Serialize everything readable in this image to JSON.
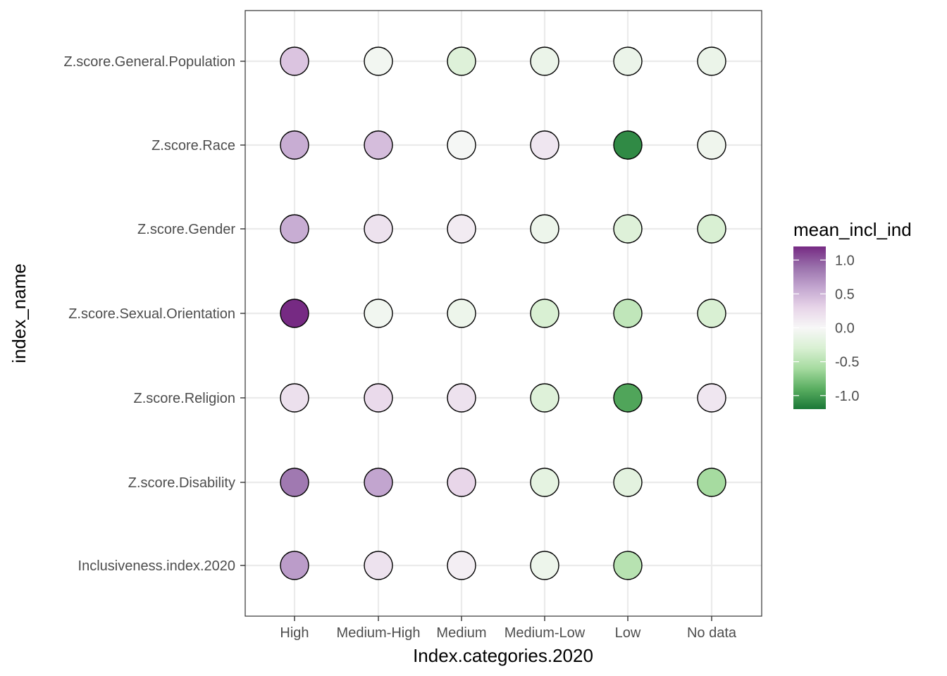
{
  "chart_data": {
    "type": "heatmap",
    "xlabel": "Index.categories.2020",
    "ylabel": "index_name",
    "x_categories": [
      "High",
      "Medium-High",
      "Medium",
      "Medium-Low",
      "Low",
      "No data"
    ],
    "y_categories": [
      "Z.score.General.Population",
      "Z.score.Race",
      "Z.score.Gender",
      "Z.score.Sexual.Orientation",
      "Z.score.Religion",
      "Z.score.Disability",
      "Inclusiveness.index.2020"
    ],
    "values": [
      [
        0.4,
        -0.05,
        -0.25,
        -0.12,
        -0.12,
        -0.12
      ],
      [
        0.55,
        0.45,
        -0.02,
        0.15,
        -1.1,
        -0.08
      ],
      [
        0.55,
        0.18,
        0.1,
        -0.1,
        -0.25,
        -0.3
      ],
      [
        1.2,
        -0.06,
        -0.1,
        -0.3,
        -0.45,
        -0.3
      ],
      [
        0.2,
        0.25,
        0.18,
        -0.25,
        -0.95,
        0.15
      ],
      [
        0.85,
        0.6,
        0.28,
        -0.18,
        -0.2,
        -0.6
      ],
      [
        0.65,
        0.18,
        0.08,
        -0.1,
        -0.5,
        null
      ]
    ],
    "legend": {
      "title": "mean_incl_ind",
      "placement": "right",
      "breaks": [
        1.0,
        0.5,
        0.0,
        -0.5,
        -1.0
      ],
      "break_labels": [
        "1.0",
        "0.5",
        "0.0",
        "-0.5",
        "-1.0"
      ],
      "limits": [
        -1.2,
        1.2
      ]
    },
    "palette": {
      "low": "#1b7837",
      "mid": "#f7f7f7",
      "high": "#762a83",
      "stops": [
        "#1b7837",
        "#5aae61",
        "#a6dba0",
        "#d9f0d3",
        "#f7f7f7",
        "#e7d4e8",
        "#c2a5cf",
        "#9970ab",
        "#762a83"
      ]
    },
    "grid": true,
    "panel_border": true
  }
}
